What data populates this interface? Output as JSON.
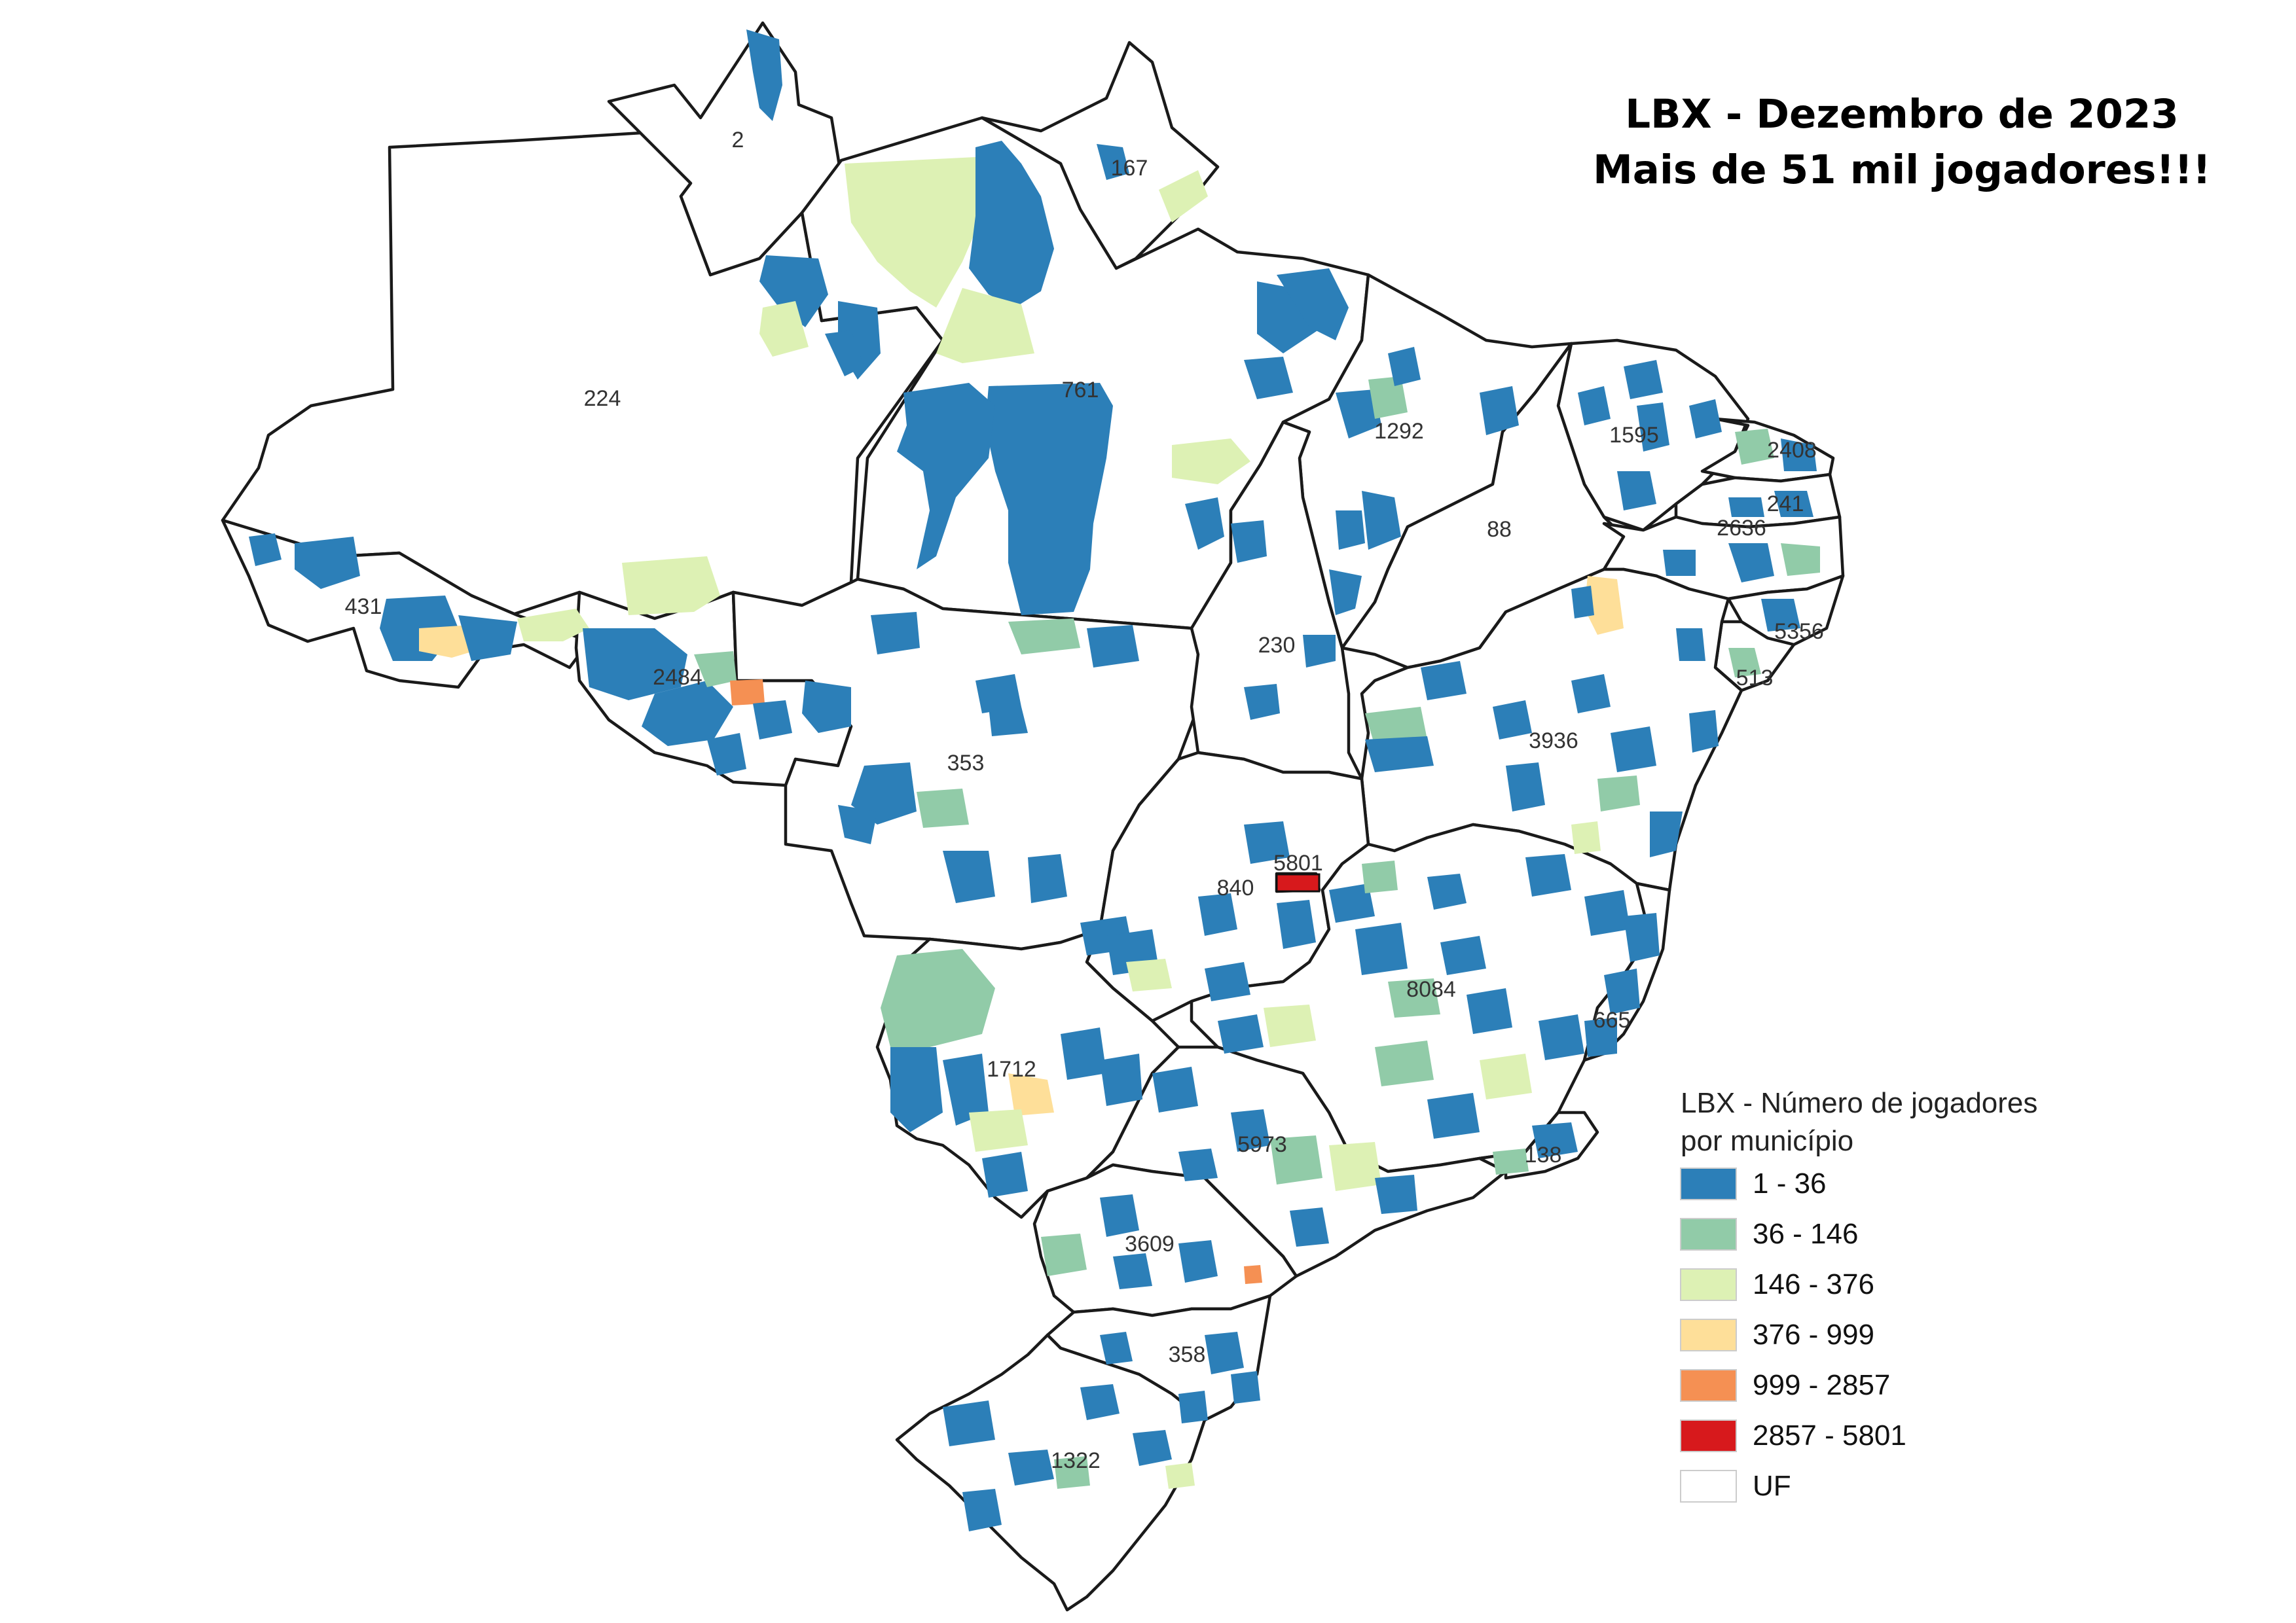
{
  "title": {
    "line1": "LBX - Dezembro de 2023",
    "line2": "Mais de 51 mil jogadores!!!"
  },
  "legend": {
    "title_line1": "LBX - Número de jogadores",
    "title_line2": "por município",
    "items": [
      {
        "label": "1 - 36",
        "color": "#2c7fb8"
      },
      {
        "label": "36 - 146",
        "color": "#91cba8"
      },
      {
        "label": "146 - 376",
        "color": "#ddf1b4"
      },
      {
        "label": "376 - 999",
        "color": "#fedf99"
      },
      {
        "label": "999 - 2857",
        "color": "#f59053"
      },
      {
        "label": "2857 - 5801",
        "color": "#d7191c"
      },
      {
        "label": "UF",
        "color": "#ffffff"
      }
    ]
  },
  "states": [
    {
      "name": "RR",
      "value": "2"
    },
    {
      "name": "AP",
      "value": "167"
    },
    {
      "name": "AM",
      "value": "224"
    },
    {
      "name": "PA",
      "value": "761"
    },
    {
      "name": "MA",
      "value": "1292"
    },
    {
      "name": "CE",
      "value": "1595"
    },
    {
      "name": "RN",
      "value": "2408"
    },
    {
      "name": "PB",
      "value": "241"
    },
    {
      "name": "PI",
      "value": "88"
    },
    {
      "name": "PE",
      "value": "2636"
    },
    {
      "name": "AL",
      "value": "5356"
    },
    {
      "name": "SE",
      "value": "513"
    },
    {
      "name": "AC",
      "value": "431"
    },
    {
      "name": "RO",
      "value": "2484"
    },
    {
      "name": "TO",
      "value": "230"
    },
    {
      "name": "MT",
      "value": "353"
    },
    {
      "name": "BA",
      "value": "3936"
    },
    {
      "name": "DF",
      "value": "5801"
    },
    {
      "name": "GO",
      "value": "840"
    },
    {
      "name": "MG",
      "value": "8084"
    },
    {
      "name": "ES",
      "value": "665"
    },
    {
      "name": "MS",
      "value": "1712"
    },
    {
      "name": "SP",
      "value": "5973"
    },
    {
      "name": "RJ",
      "value": "138"
    },
    {
      "name": "PR",
      "value": "3609"
    },
    {
      "name": "SC",
      "value": "358"
    },
    {
      "name": "RS",
      "value": "1322"
    }
  ]
}
